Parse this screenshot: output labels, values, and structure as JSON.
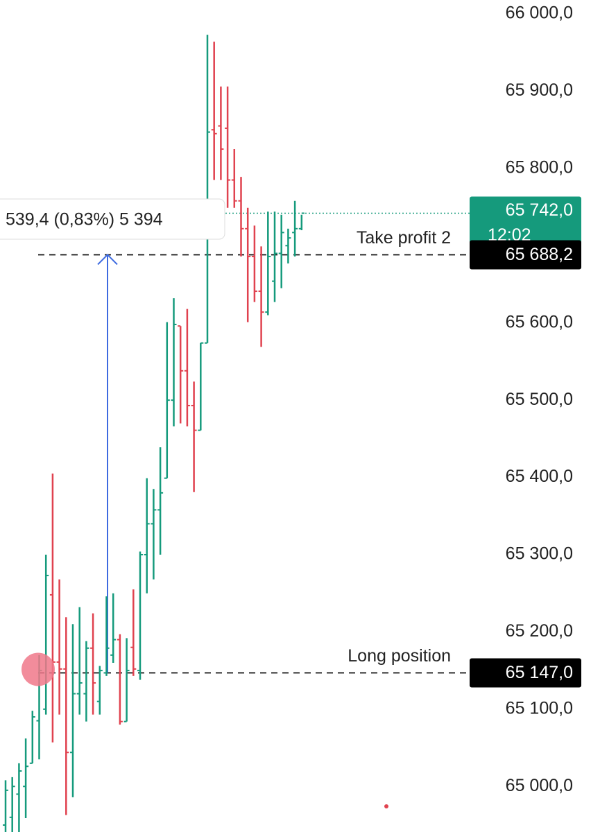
{
  "chart_data": {
    "type": "ohlc",
    "ylim": [
      64941,
      66018
    ],
    "yticks": [
      {
        "value": 66000,
        "label": "66 000,0"
      },
      {
        "value": 65900,
        "label": "65 900,0"
      },
      {
        "value": 65800,
        "label": "65 800,0"
      },
      {
        "value": 65600,
        "label": "65 600,0"
      },
      {
        "value": 65500,
        "label": "65 500,0"
      },
      {
        "value": 65400,
        "label": "65 400,0"
      },
      {
        "value": 65300,
        "label": "65 300,0"
      },
      {
        "value": 65200,
        "label": "65 200,0"
      },
      {
        "value": 65100,
        "label": "65 100,0"
      },
      {
        "value": 65000,
        "label": "65 000,0"
      }
    ],
    "up_color": "#159a7c",
    "down_color": "#e0424f",
    "open": [
      64950,
      64960,
      64990,
      65000,
      65030,
      65085,
      65100,
      65248,
      65161,
      65152,
      65044,
      65120,
      65120,
      65179,
      65110,
      65147,
      65170,
      65190,
      65084,
      65180,
      65150,
      65300,
      65340,
      65358,
      65399,
      65500,
      65596,
      65538,
      65493,
      65461,
      65574,
      65850,
      65855,
      65852,
      65785,
      65758,
      65722,
      65686,
      65641,
      65614,
      65654,
      65690,
      65700,
      65717,
      65722
    ],
    "high": [
      65008,
      65012,
      65030,
      65062,
      65098,
      65170,
      65300,
      65405,
      65268,
      65219,
      65210,
      65232,
      65188,
      65224,
      65156,
      65246,
      65250,
      65197,
      65192,
      65255,
      65304,
      65399,
      65385,
      65439,
      65601,
      65632,
      65596,
      65618,
      65524,
      65574,
      65973,
      65964,
      65906,
      65906,
      65825,
      65789,
      65749,
      65726,
      65699,
      65744,
      65744,
      65740,
      65722,
      65758,
      65740
    ],
    "low": [
      64941,
      64941,
      64941,
      64959,
      65030,
      65035,
      65093,
      65057,
      65093,
      64963,
      64986,
      65093,
      65084,
      65093,
      65093,
      65143,
      65160,
      65080,
      65084,
      65143,
      65138,
      65250,
      65268,
      65300,
      65399,
      65466,
      65470,
      65466,
      65381,
      65461,
      65574,
      65785,
      65785,
      65749,
      65749,
      65686,
      65601,
      65627,
      65569,
      65610,
      65627,
      65645,
      65677,
      65686,
      65720
    ],
    "close": [
      64995,
      65000,
      65020,
      65026,
      65090,
      65150,
      65273,
      65161,
      65152,
      65044,
      65120,
      65134,
      65179,
      65134,
      65150,
      65179,
      65190,
      65084,
      65150,
      65152,
      65300,
      65340,
      65358,
      65380,
      65500,
      65598,
      65538,
      65493,
      65461,
      65574,
      65847,
      65845,
      65825,
      65785,
      65758,
      65722,
      65686,
      65641,
      65614,
      65686,
      65690,
      65717,
      65710,
      65722,
      65742
    ],
    "lines": [
      {
        "value": 65688.2,
        "label": "65 688,2",
        "text": "Take profit 2"
      },
      {
        "value": 65147,
        "label": "65 147,0",
        "text": "Long position"
      }
    ],
    "current": {
      "value": 65742,
      "label": "65 742,0",
      "time": "12:02"
    },
    "measure": "539,4 (0,83%) 5 394"
  }
}
